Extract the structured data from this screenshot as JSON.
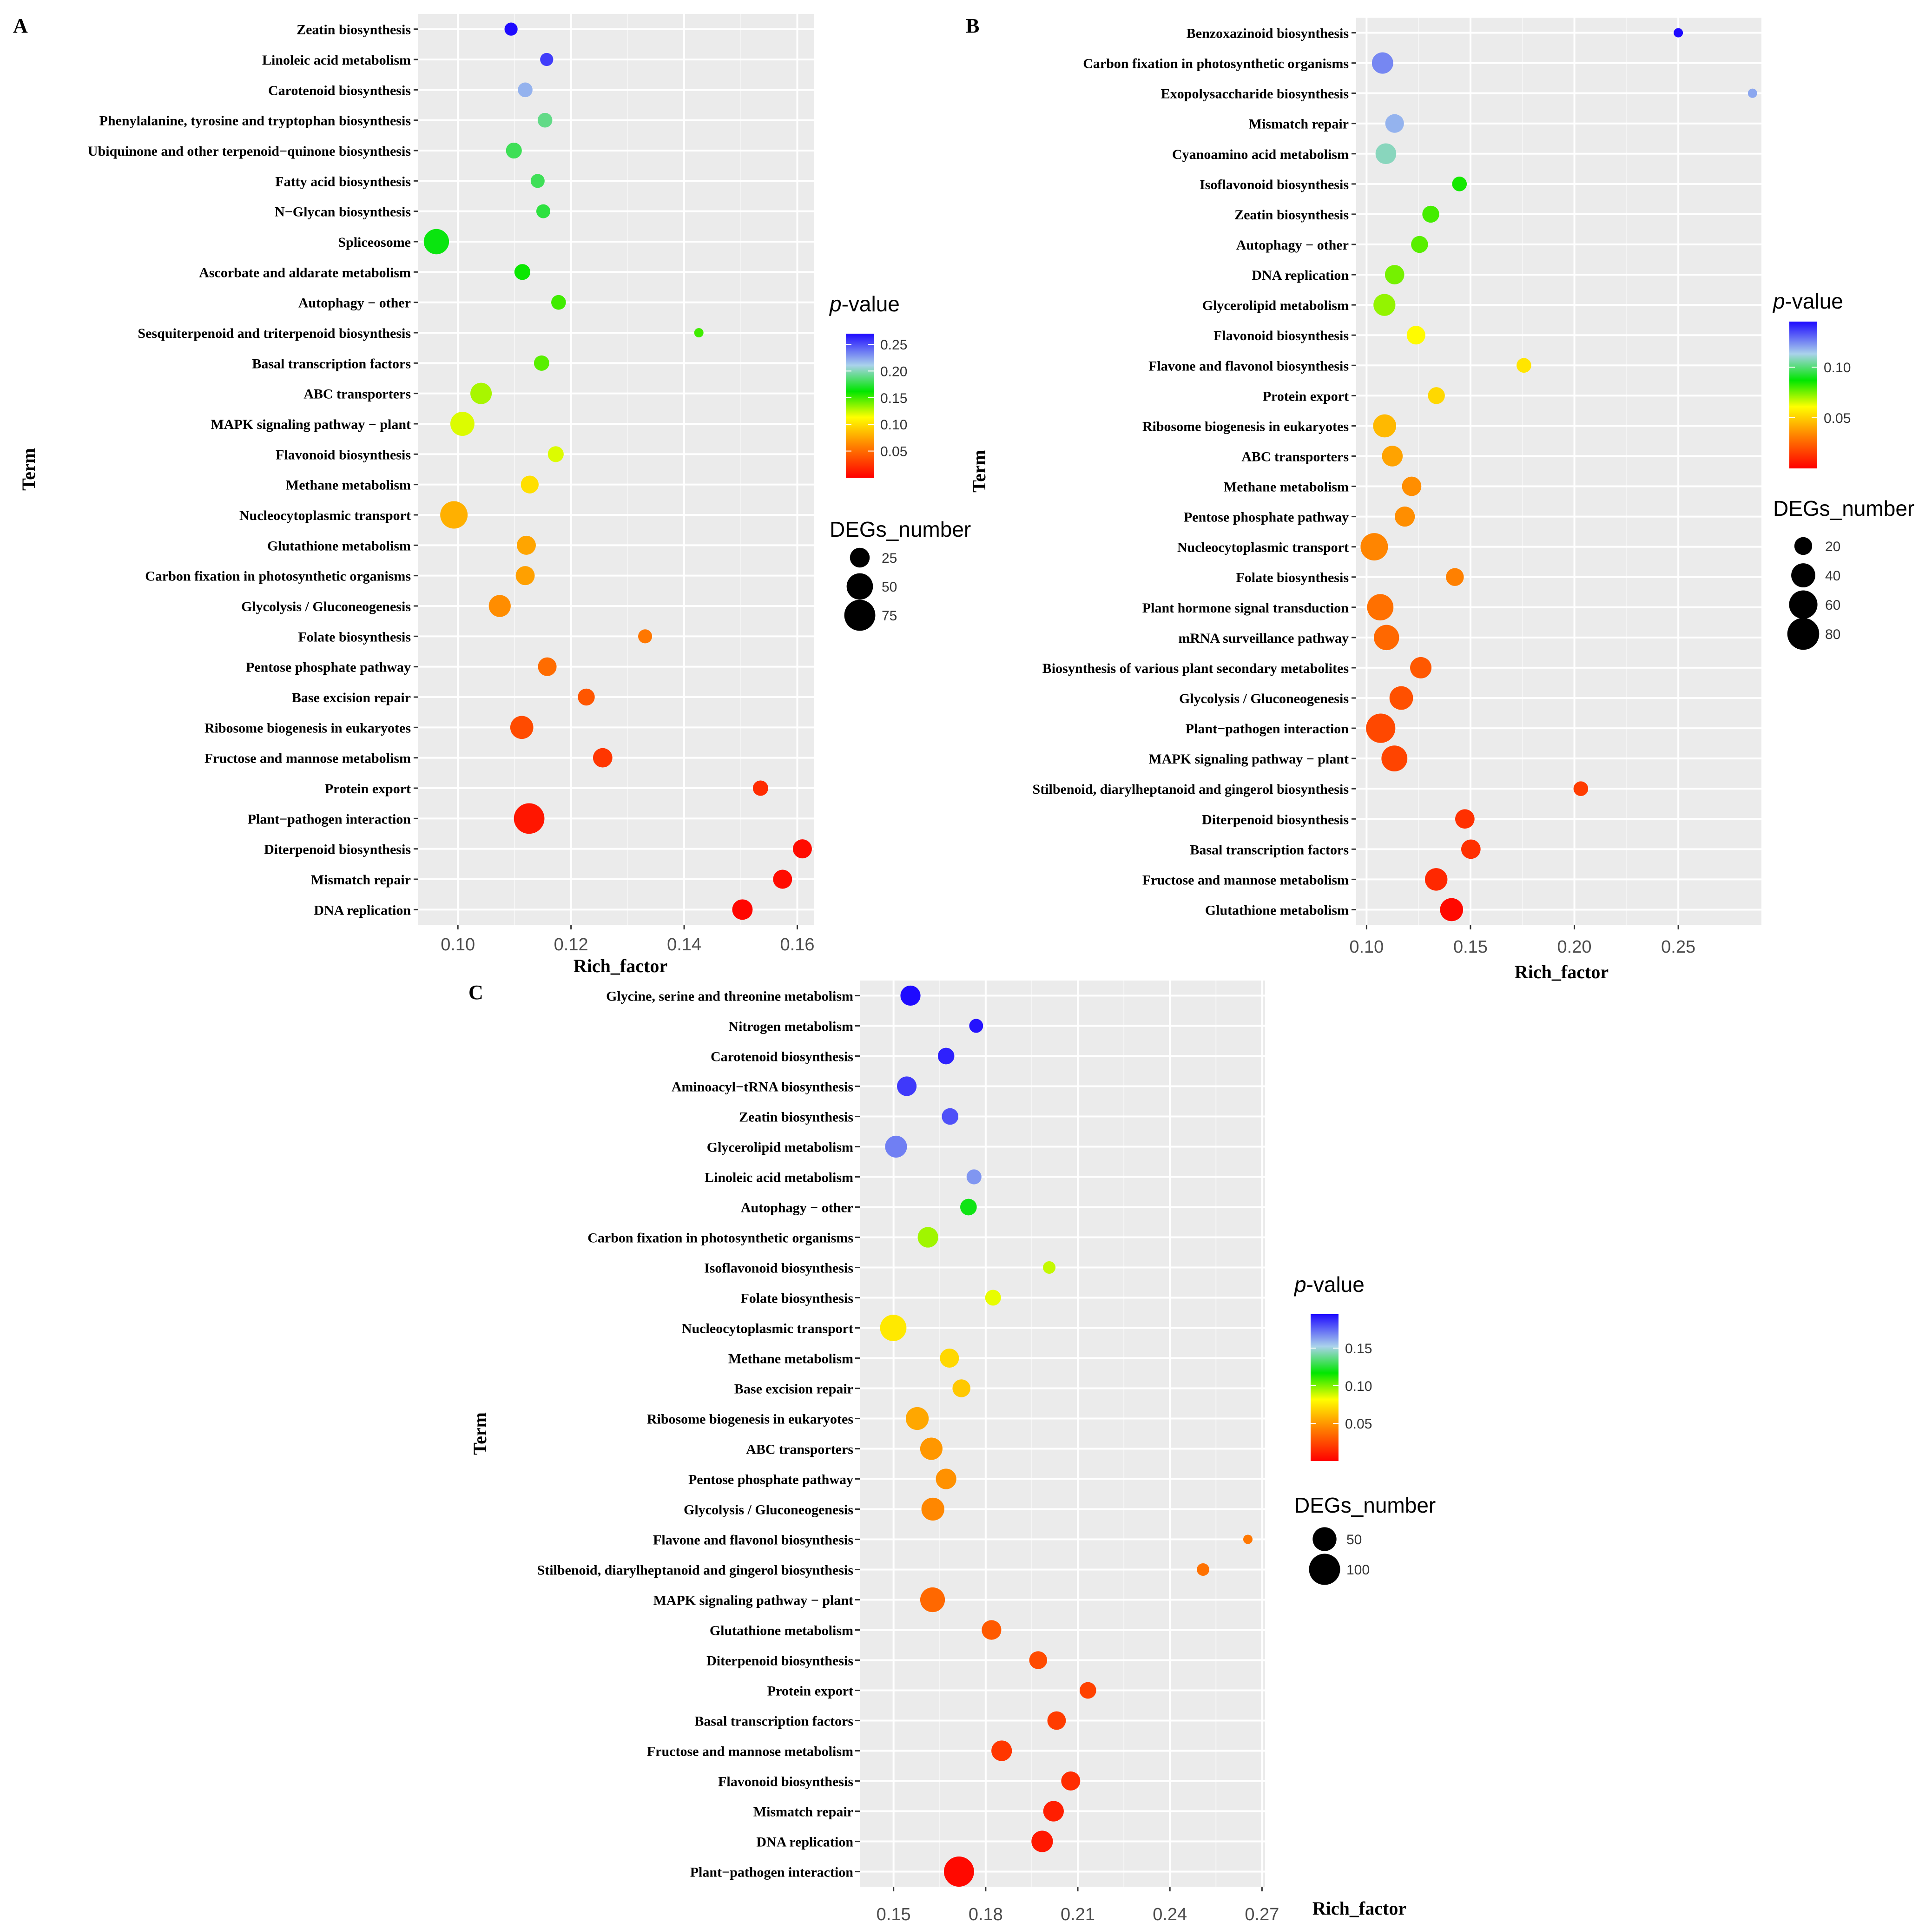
{
  "figure": {
    "panels": [
      {
        "letter": "A",
        "legend_pvalue_title_italic": "p",
        "legend_pvalue_title_rest": "-value",
        "legend_deg_title": "DEGs_number",
        "xlabel": "Rich_factor",
        "ylabel": "Term",
        "pvalue_range": [
          0,
          0.27
        ],
        "pvalue_ticks": [
          0.05,
          0.1,
          0.15,
          0.2,
          0.25
        ],
        "deg_range": [
          10,
          90
        ],
        "deg_legend": [
          25,
          50,
          75
        ],
        "xlim": [
          0.093,
          0.163
        ],
        "xticks": [
          0.1,
          0.12,
          0.14,
          0.16
        ],
        "xtick_labels": [
          "0.10",
          "0.12",
          "0.14",
          "0.16"
        ]
      },
      {
        "letter": "B",
        "legend_pvalue_title_italic": "p",
        "legend_pvalue_title_rest": "-value",
        "legend_deg_title": "DEGs_number",
        "xlabel": "Rich_factor",
        "ylabel": "Term",
        "pvalue_range": [
          0,
          0.145
        ],
        "pvalue_ticks": [
          0.05,
          0.1
        ],
        "deg_range": [
          10,
          90
        ],
        "deg_legend": [
          20,
          40,
          60,
          80
        ],
        "xlim": [
          0.095,
          0.29
        ],
        "xticks": [
          0.1,
          0.15,
          0.2,
          0.25
        ],
        "xtick_labels": [
          "0.10",
          "0.15",
          "0.20",
          "0.25"
        ]
      },
      {
        "letter": "C",
        "legend_pvalue_title_italic": "p",
        "legend_pvalue_title_rest": "-value",
        "legend_deg_title": "DEGs_number",
        "xlabel": "Rich_factor",
        "ylabel": "Term",
        "pvalue_range": [
          0,
          0.195
        ],
        "pvalue_ticks": [
          0.05,
          0.1,
          0.15
        ],
        "deg_range": [
          10,
          120
        ],
        "deg_legend": [
          50,
          100
        ],
        "xlim": [
          0.139,
          0.271
        ],
        "xticks": [
          0.15,
          0.18,
          0.21,
          0.24,
          0.27
        ],
        "xtick_labels": [
          "0.15",
          "0.18",
          "0.21",
          "0.24",
          "0.27"
        ]
      }
    ]
  },
  "chart_data": [
    {
      "type": "scatter",
      "panel": "A",
      "title": "",
      "xlabel": "Rich_factor",
      "ylabel": "Term",
      "color_label": "p-value",
      "size_label": "DEGs_number",
      "xlim": [
        0.093,
        0.163
      ],
      "points": [
        {
          "term": "Zeatin biosynthesis",
          "x": 0.1094,
          "p": 0.27,
          "n": 12
        },
        {
          "term": "Linoleic acid metabolism",
          "x": 0.1157,
          "p": 0.255,
          "n": 12
        },
        {
          "term": "Carotenoid biosynthesis",
          "x": 0.1119,
          "p": 0.22,
          "n": 14
        },
        {
          "term": "Phenylalanine, tyrosine and tryptophan biosynthesis",
          "x": 0.1154,
          "p": 0.19,
          "n": 14
        },
        {
          "term": "Ubiquinone and other terpenoid−quinone biosynthesis",
          "x": 0.1099,
          "p": 0.18,
          "n": 16
        },
        {
          "term": "Fatty acid biosynthesis",
          "x": 0.1141,
          "p": 0.18,
          "n": 13
        },
        {
          "term": "N−Glycan biosynthesis",
          "x": 0.1151,
          "p": 0.175,
          "n": 13
        },
        {
          "term": "Spliceosome",
          "x": 0.0962,
          "p": 0.165,
          "n": 45
        },
        {
          "term": "Ascorbate and aldarate metabolism",
          "x": 0.1114,
          "p": 0.16,
          "n": 16
        },
        {
          "term": "Autophagy − other",
          "x": 0.1178,
          "p": 0.15,
          "n": 14
        },
        {
          "term": "Sesquiterpenoid and triterpenoid biosynthesis",
          "x": 0.1426,
          "p": 0.15,
          "n": 6
        },
        {
          "term": "Basal transcription factors",
          "x": 0.1148,
          "p": 0.145,
          "n": 15
        },
        {
          "term": "ABC transporters",
          "x": 0.1041,
          "p": 0.13,
          "n": 30
        },
        {
          "term": "MAPK signaling pathway − plant",
          "x": 0.1008,
          "p": 0.12,
          "n": 40
        },
        {
          "term": "Flavonoid biosynthesis",
          "x": 0.1173,
          "p": 0.12,
          "n": 16
        },
        {
          "term": "Methane metabolism",
          "x": 0.1127,
          "p": 0.1,
          "n": 20
        },
        {
          "term": "Nucleocytoplasmic transport",
          "x": 0.0993,
          "p": 0.08,
          "n": 55
        },
        {
          "term": "Glutathione metabolism",
          "x": 0.1121,
          "p": 0.075,
          "n": 23
        },
        {
          "term": "Carbon fixation in photosynthetic organisms",
          "x": 0.1119,
          "p": 0.073,
          "n": 23
        },
        {
          "term": "Glycolysis / Gluconeogenesis",
          "x": 0.1074,
          "p": 0.065,
          "n": 32
        },
        {
          "term": "Folate biosynthesis",
          "x": 0.1331,
          "p": 0.055,
          "n": 13
        },
        {
          "term": "Pentose phosphate pathway",
          "x": 0.1158,
          "p": 0.05,
          "n": 22
        },
        {
          "term": "Base excision repair",
          "x": 0.1227,
          "p": 0.04,
          "n": 18
        },
        {
          "term": "Ribosome biogenesis in eukaryotes",
          "x": 0.1113,
          "p": 0.035,
          "n": 36
        },
        {
          "term": "Fructose and mannose metabolism",
          "x": 0.1256,
          "p": 0.025,
          "n": 24
        },
        {
          "term": "Protein export",
          "x": 0.1535,
          "p": 0.02,
          "n": 15
        },
        {
          "term": "Plant−pathogen interaction",
          "x": 0.1126,
          "p": 0.01,
          "n": 72
        },
        {
          "term": "Diterpenoid biosynthesis",
          "x": 0.1609,
          "p": 0.005,
          "n": 23
        },
        {
          "term": "Mismatch repair",
          "x": 0.1574,
          "p": 0.005,
          "n": 23
        },
        {
          "term": "DNA replication",
          "x": 0.1503,
          "p": 0.003,
          "n": 27
        }
      ]
    },
    {
      "type": "scatter",
      "panel": "B",
      "title": "",
      "xlabel": "Rich_factor",
      "ylabel": "Term",
      "color_label": "p-value",
      "size_label": "DEGs_number",
      "xlim": [
        0.095,
        0.29
      ],
      "points": [
        {
          "term": "Benzoxazinoid biosynthesis",
          "x": 0.25,
          "p": 0.145,
          "n": 4
        },
        {
          "term": "Carbon fixation in photosynthetic organisms",
          "x": 0.1077,
          "p": 0.125,
          "n": 30
        },
        {
          "term": "Exopolysaccharide biosynthesis",
          "x": 0.2857,
          "p": 0.12,
          "n": 4
        },
        {
          "term": "Mismatch repair",
          "x": 0.1135,
          "p": 0.118,
          "n": 22
        },
        {
          "term": "Cyanoamino acid metabolism",
          "x": 0.1093,
          "p": 0.108,
          "n": 28
        },
        {
          "term": "Isoflavonoid biosynthesis",
          "x": 0.1447,
          "p": 0.085,
          "n": 14
        },
        {
          "term": "Zeatin biosynthesis",
          "x": 0.1309,
          "p": 0.08,
          "n": 18
        },
        {
          "term": "Autophagy − other",
          "x": 0.1255,
          "p": 0.078,
          "n": 18
        },
        {
          "term": "DNA replication",
          "x": 0.1135,
          "p": 0.075,
          "n": 24
        },
        {
          "term": "Glycerolipid metabolism",
          "x": 0.1086,
          "p": 0.072,
          "n": 32
        },
        {
          "term": "Flavonoid biosynthesis",
          "x": 0.1238,
          "p": 0.06,
          "n": 22
        },
        {
          "term": "Flavone and flavonol biosynthesis",
          "x": 0.1757,
          "p": 0.055,
          "n": 14
        },
        {
          "term": "Protein export",
          "x": 0.1336,
          "p": 0.052,
          "n": 18
        },
        {
          "term": "Ribosome biogenesis in eukaryotes",
          "x": 0.1087,
          "p": 0.045,
          "n": 36
        },
        {
          "term": "ABC transporters",
          "x": 0.1124,
          "p": 0.04,
          "n": 28
        },
        {
          "term": "Methane metabolism",
          "x": 0.1217,
          "p": 0.035,
          "n": 24
        },
        {
          "term": "Pentose phosphate pathway",
          "x": 0.1184,
          "p": 0.035,
          "n": 26
        },
        {
          "term": "Nucleocytoplasmic transport",
          "x": 0.1037,
          "p": 0.033,
          "n": 55
        },
        {
          "term": "Folate biosynthesis",
          "x": 0.1425,
          "p": 0.032,
          "n": 20
        },
        {
          "term": "Plant hormone signal transduction",
          "x": 0.1066,
          "p": 0.028,
          "n": 50
        },
        {
          "term": "mRNA surveillance pathway",
          "x": 0.1096,
          "p": 0.026,
          "n": 45
        },
        {
          "term": "Biosynthesis of various plant secondary metabolites",
          "x": 0.1261,
          "p": 0.022,
          "n": 30
        },
        {
          "term": "Glycolysis / Gluconeogenesis",
          "x": 0.1167,
          "p": 0.02,
          "n": 38
        },
        {
          "term": "Plant−pathogen interaction",
          "x": 0.1068,
          "p": 0.018,
          "n": 65
        },
        {
          "term": "MAPK signaling pathway − plant",
          "x": 0.1134,
          "p": 0.017,
          "n": 48
        },
        {
          "term": "Stilbenoid, diarylheptanoid and gingerol biosynthesis",
          "x": 0.2031,
          "p": 0.015,
          "n": 14
        },
        {
          "term": "Diterpenoid biosynthesis",
          "x": 0.1473,
          "p": 0.012,
          "n": 24
        },
        {
          "term": "Basal transcription factors",
          "x": 0.1502,
          "p": 0.012,
          "n": 24
        },
        {
          "term": "Fructose and mannose metabolism",
          "x": 0.1335,
          "p": 0.01,
          "n": 34
        },
        {
          "term": "Glutathione metabolism",
          "x": 0.1409,
          "p": 0.002,
          "n": 36
        }
      ]
    },
    {
      "type": "scatter",
      "panel": "C",
      "title": "",
      "xlabel": "Rich_factor",
      "ylabel": "Term",
      "color_label": "p-value",
      "size_label": "DEGs_number",
      "xlim": [
        0.139,
        0.271
      ],
      "points": [
        {
          "term": "Glycine, serine and threonine metabolism",
          "x": 0.1555,
          "p": 0.195,
          "n": 32
        },
        {
          "term": "Nitrogen metabolism",
          "x": 0.1769,
          "p": 0.193,
          "n": 14
        },
        {
          "term": "Carotenoid biosynthesis",
          "x": 0.1671,
          "p": 0.19,
          "n": 20
        },
        {
          "term": "Aminoacyl−tRNA biosynthesis",
          "x": 0.1543,
          "p": 0.185,
          "n": 30
        },
        {
          "term": "Zeatin biosynthesis",
          "x": 0.1684,
          "p": 0.18,
          "n": 20
        },
        {
          "term": "Glycerolipid metabolism",
          "x": 0.1508,
          "p": 0.17,
          "n": 40
        },
        {
          "term": "Linoleic acid metabolism",
          "x": 0.1762,
          "p": 0.165,
          "n": 16
        },
        {
          "term": "Autophagy − other",
          "x": 0.1744,
          "p": 0.12,
          "n": 20
        },
        {
          "term": "Carbon fixation in photosynthetic organisms",
          "x": 0.1612,
          "p": 0.095,
          "n": 34
        },
        {
          "term": "Isoflavonoid biosynthesis",
          "x": 0.2007,
          "p": 0.09,
          "n": 12
        },
        {
          "term": "Folate biosynthesis",
          "x": 0.1824,
          "p": 0.085,
          "n": 18
        },
        {
          "term": "Nucleocytoplasmic transport",
          "x": 0.1499,
          "p": 0.075,
          "n": 65
        },
        {
          "term": "Methane metabolism",
          "x": 0.1682,
          "p": 0.07,
          "n": 28
        },
        {
          "term": "Base excision repair",
          "x": 0.1721,
          "p": 0.065,
          "n": 24
        },
        {
          "term": "Ribosome biogenesis in eukaryotes",
          "x": 0.1577,
          "p": 0.055,
          "n": 45
        },
        {
          "term": "ABC transporters",
          "x": 0.1623,
          "p": 0.05,
          "n": 42
        },
        {
          "term": "Pentose phosphate pathway",
          "x": 0.1671,
          "p": 0.048,
          "n": 34
        },
        {
          "term": "Glycolysis / Gluconeogenesis",
          "x": 0.1628,
          "p": 0.045,
          "n": 45
        },
        {
          "term": "Flavone and flavonol biosynthesis",
          "x": 0.2654,
          "p": 0.04,
          "n": 10
        },
        {
          "term": "Stilbenoid, diarylheptanoid and gingerol biosynthesis",
          "x": 0.2508,
          "p": 0.038,
          "n": 12
        },
        {
          "term": "MAPK signaling pathway − plant",
          "x": 0.1627,
          "p": 0.035,
          "n": 55
        },
        {
          "term": "Glutathione metabolism",
          "x": 0.1819,
          "p": 0.03,
          "n": 30
        },
        {
          "term": "Diterpenoid biosynthesis",
          "x": 0.1971,
          "p": 0.025,
          "n": 24
        },
        {
          "term": "Protein export",
          "x": 0.2133,
          "p": 0.022,
          "n": 20
        },
        {
          "term": "Basal transcription factors",
          "x": 0.2031,
          "p": 0.02,
          "n": 26
        },
        {
          "term": "Fructose and mannose metabolism",
          "x": 0.1852,
          "p": 0.018,
          "n": 34
        },
        {
          "term": "Flavonoid biosynthesis",
          "x": 0.2077,
          "p": 0.015,
          "n": 28
        },
        {
          "term": "Mismatch repair",
          "x": 0.2021,
          "p": 0.01,
          "n": 34
        },
        {
          "term": "DNA replication",
          "x": 0.1984,
          "p": 0.008,
          "n": 38
        },
        {
          "term": "Plant−pathogen interaction",
          "x": 0.1713,
          "p": 0.003,
          "n": 92
        }
      ]
    }
  ]
}
